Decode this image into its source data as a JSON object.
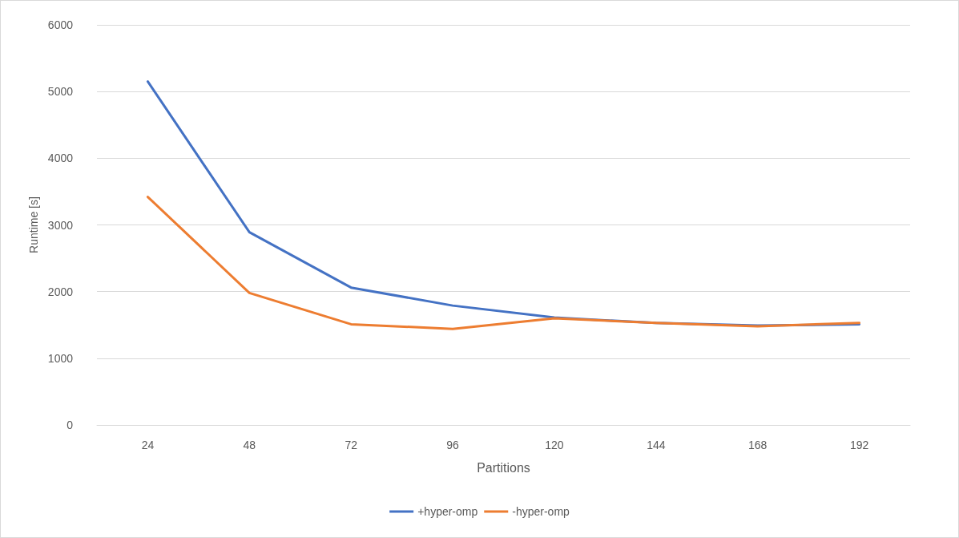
{
  "chart_data": {
    "type": "line",
    "xlabel": "Partitions",
    "ylabel": "Runtime [s]",
    "categories": [
      "24",
      "48",
      "72",
      "96",
      "120",
      "144",
      "168",
      "192"
    ],
    "series": [
      {
        "name": "+hyper-omp",
        "color": "#4472c4",
        "values": [
          5150,
          2890,
          2060,
          1790,
          1610,
          1530,
          1490,
          1510
        ]
      },
      {
        "name": "-hyper-omp",
        "color": "#ed7d31",
        "values": [
          3420,
          1980,
          1510,
          1440,
          1600,
          1530,
          1480,
          1530
        ]
      }
    ],
    "ylim": [
      0,
      6000
    ],
    "yticks": [
      0,
      1000,
      2000,
      3000,
      4000,
      5000,
      6000
    ],
    "grid": "y",
    "legend": "bottom",
    "marker": "none",
    "line_style": "solid"
  }
}
